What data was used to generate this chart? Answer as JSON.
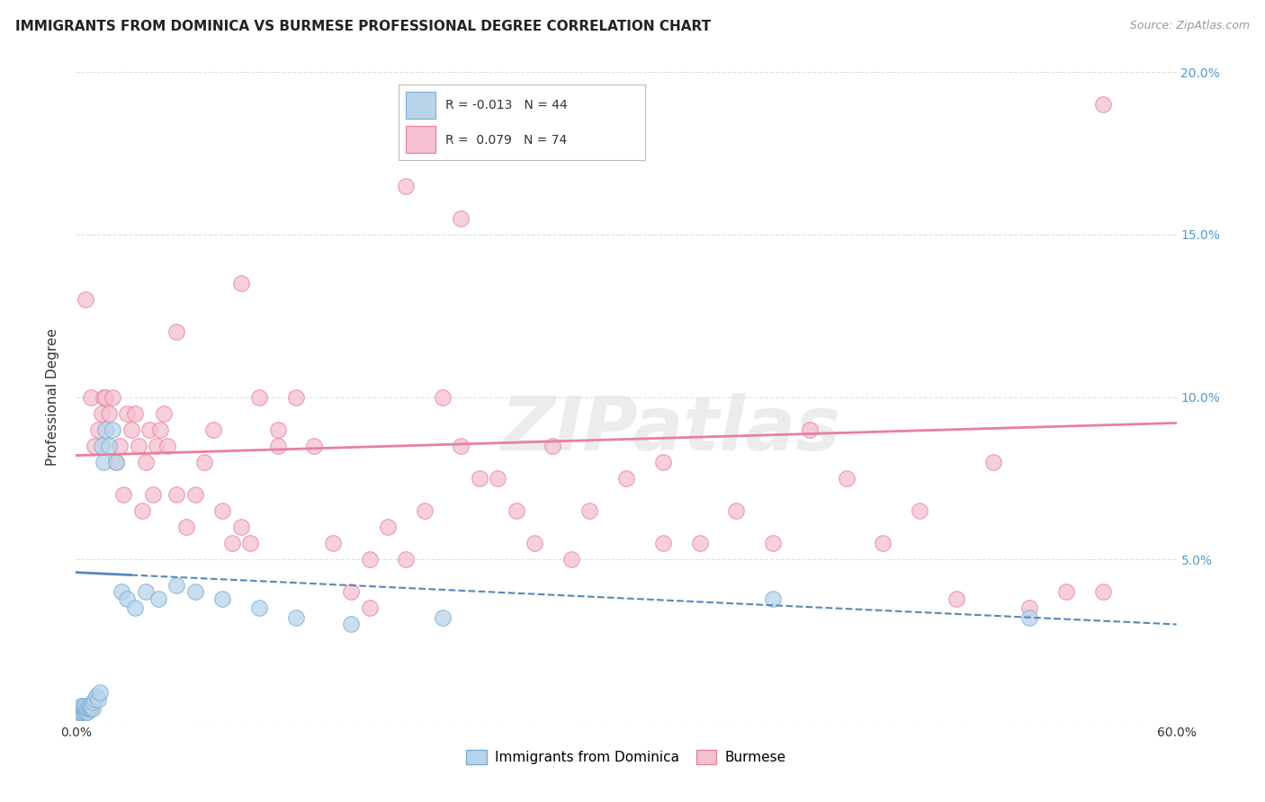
{
  "title": "IMMIGRANTS FROM DOMINICA VS BURMESE PROFESSIONAL DEGREE CORRELATION CHART",
  "source": "Source: ZipAtlas.com",
  "ylabel": "Professional Degree",
  "xlim": [
    0.0,
    0.6
  ],
  "ylim": [
    0.0,
    0.2
  ],
  "series1_label": "Immigrants from Dominica",
  "series1_R": -0.013,
  "series1_N": 44,
  "series1_color": "#b8d4ea",
  "series1_edge_color": "#7aadd4",
  "series2_label": "Burmese",
  "series2_R": 0.079,
  "series2_N": 74,
  "series2_color": "#f5c0cf",
  "series2_edge_color": "#e8809a",
  "trend1_color": "#5588bb",
  "trend2_color": "#e8809a",
  "background_color": "#ffffff",
  "grid_color": "#dddddd",
  "title_fontsize": 11,
  "source_fontsize": 9,
  "series1_x": [
    0.001,
    0.002,
    0.002,
    0.003,
    0.003,
    0.003,
    0.004,
    0.004,
    0.004,
    0.005,
    0.005,
    0.005,
    0.006,
    0.006,
    0.007,
    0.007,
    0.008,
    0.008,
    0.009,
    0.009,
    0.01,
    0.011,
    0.012,
    0.013,
    0.014,
    0.015,
    0.016,
    0.018,
    0.02,
    0.022,
    0.025,
    0.028,
    0.032,
    0.038,
    0.045,
    0.055,
    0.065,
    0.08,
    0.1,
    0.12,
    0.15,
    0.2,
    0.38,
    0.52
  ],
  "series1_y": [
    0.003,
    0.004,
    0.003,
    0.004,
    0.003,
    0.005,
    0.003,
    0.004,
    0.005,
    0.003,
    0.004,
    0.005,
    0.003,
    0.004,
    0.004,
    0.005,
    0.004,
    0.005,
    0.004,
    0.006,
    0.007,
    0.008,
    0.007,
    0.009,
    0.085,
    0.08,
    0.09,
    0.085,
    0.09,
    0.08,
    0.04,
    0.038,
    0.035,
    0.04,
    0.038,
    0.042,
    0.04,
    0.038,
    0.035,
    0.032,
    0.03,
    0.032,
    0.038,
    0.032
  ],
  "series2_x": [
    0.005,
    0.008,
    0.01,
    0.012,
    0.014,
    0.015,
    0.016,
    0.018,
    0.02,
    0.022,
    0.024,
    0.026,
    0.028,
    0.03,
    0.032,
    0.034,
    0.036,
    0.038,
    0.04,
    0.042,
    0.044,
    0.046,
    0.048,
    0.05,
    0.055,
    0.06,
    0.065,
    0.07,
    0.075,
    0.08,
    0.085,
    0.09,
    0.095,
    0.1,
    0.11,
    0.12,
    0.13,
    0.14,
    0.15,
    0.16,
    0.17,
    0.18,
    0.19,
    0.2,
    0.21,
    0.22,
    0.23,
    0.24,
    0.25,
    0.26,
    0.27,
    0.28,
    0.3,
    0.32,
    0.34,
    0.36,
    0.38,
    0.4,
    0.42,
    0.44,
    0.46,
    0.48,
    0.5,
    0.52,
    0.54,
    0.56,
    0.18,
    0.21,
    0.055,
    0.09,
    0.11,
    0.16,
    0.32,
    0.56
  ],
  "series2_y": [
    0.13,
    0.1,
    0.085,
    0.09,
    0.095,
    0.1,
    0.1,
    0.095,
    0.1,
    0.08,
    0.085,
    0.07,
    0.095,
    0.09,
    0.095,
    0.085,
    0.065,
    0.08,
    0.09,
    0.07,
    0.085,
    0.09,
    0.095,
    0.085,
    0.07,
    0.06,
    0.07,
    0.08,
    0.09,
    0.065,
    0.055,
    0.06,
    0.055,
    0.1,
    0.085,
    0.1,
    0.085,
    0.055,
    0.04,
    0.035,
    0.06,
    0.05,
    0.065,
    0.1,
    0.085,
    0.075,
    0.075,
    0.065,
    0.055,
    0.085,
    0.05,
    0.065,
    0.075,
    0.08,
    0.055,
    0.065,
    0.055,
    0.09,
    0.075,
    0.055,
    0.065,
    0.038,
    0.08,
    0.035,
    0.04,
    0.19,
    0.165,
    0.155,
    0.12,
    0.135,
    0.09,
    0.05,
    0.055,
    0.04
  ],
  "trend1_x0": 0.0,
  "trend1_y0": 0.046,
  "trend1_x1": 0.6,
  "trend1_y1": 0.03,
  "trend2_x0": 0.0,
  "trend2_y0": 0.082,
  "trend2_x1": 0.6,
  "trend2_y1": 0.092
}
